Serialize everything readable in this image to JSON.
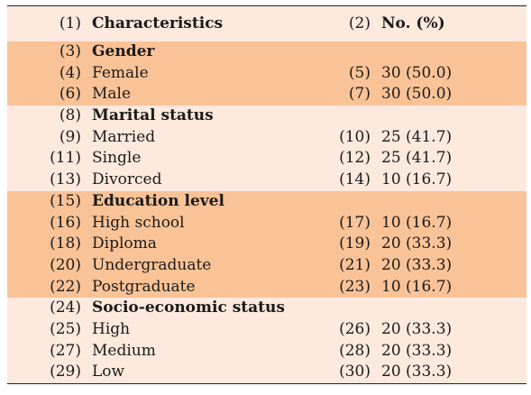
{
  "colors": {
    "light_band": "#fde9dd",
    "dark_band": "#f9c397"
  },
  "header": {
    "num_left": "(1)",
    "label": "Characteristics",
    "num_right": "(2)",
    "value": "No. (%)"
  },
  "groups": [
    {
      "band": "dark_band",
      "title_num": "(3)",
      "title": "Gender",
      "rows": [
        {
          "num_left": "(4)",
          "label": "Female",
          "num_right": "(5)",
          "value": "30 (50.0)"
        },
        {
          "num_left": "(6)",
          "label": "Male",
          "num_right": "(7)",
          "value": "30 (50.0)"
        }
      ]
    },
    {
      "band": "light_band",
      "title_num": "(8)",
      "title": "Marital status",
      "rows": [
        {
          "num_left": "(9)",
          "label": "Married",
          "num_right": "(10)",
          "value": "25 (41.7)"
        },
        {
          "num_left": "(11)",
          "label": "Single",
          "num_right": "(12)",
          "value": "25 (41.7)"
        },
        {
          "num_left": "(13)",
          "label": "Divorced",
          "num_right": "(14)",
          "value": "10 (16.7)"
        }
      ]
    },
    {
      "band": "dark_band",
      "title_num": "(15)",
      "title": "Education level",
      "rows": [
        {
          "num_left": "(16)",
          "label": "High school",
          "num_right": "(17)",
          "value": "10 (16.7)"
        },
        {
          "num_left": "(18)",
          "label": "Diploma",
          "num_right": "(19)",
          "value": "20 (33.3)"
        },
        {
          "num_left": "(20)",
          "label": "Undergraduate",
          "num_right": "(21)",
          "value": "20 (33.3)"
        },
        {
          "num_left": "(22)",
          "label": "Postgraduate",
          "num_right": "(23)",
          "value": "10 (16.7)"
        }
      ]
    },
    {
      "band": "light_band",
      "title_num": "(24)",
      "title": "Socio-economic status",
      "rows": [
        {
          "num_left": "(25)",
          "label": "High",
          "num_right": "(26)",
          "value": "20 (33.3)"
        },
        {
          "num_left": "(27)",
          "label": "Medium",
          "num_right": "(28)",
          "value": "20 (33.3)"
        },
        {
          "num_left": "(29)",
          "label": "Low",
          "num_right": "(30)",
          "value": "20 (33.3)"
        }
      ]
    }
  ]
}
